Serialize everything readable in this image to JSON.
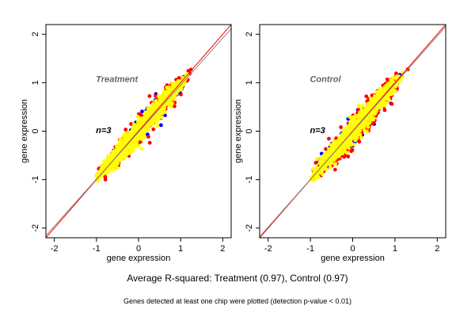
{
  "chart_data": [
    {
      "type": "scatter",
      "panel_label": "Treatment",
      "n_label": "n=3",
      "xlabel": "gene expression",
      "ylabel": "gene expression",
      "xlim": [
        -2.2,
        2.2
      ],
      "ylim": [
        -2.2,
        2.2
      ],
      "xticks": [
        -2,
        -1,
        0,
        1,
        2
      ],
      "yticks": [
        -2,
        -1,
        0,
        1,
        2
      ],
      "reference_lines": [
        {
          "color": "#ff0000",
          "slope": 1,
          "intercept": 0
        },
        {
          "color": "#888888",
          "slope": 0.97,
          "intercept": -0.02
        }
      ],
      "point_clouds": [
        {
          "color": "#0000ff",
          "x_range": [
            -1.05,
            1.25
          ],
          "spread": 0.16,
          "count": 90
        },
        {
          "color": "#ff0000",
          "x_range": [
            -1.05,
            1.3
          ],
          "spread": 0.15,
          "count": 320
        },
        {
          "color": "#ffff00",
          "x_range": [
            -1.05,
            1.2
          ],
          "spread": 0.11,
          "count": 1200
        }
      ]
    },
    {
      "type": "scatter",
      "panel_label": "Control",
      "n_label": "n=3",
      "xlabel": "gene expression",
      "ylabel": "gene expression",
      "xlim": [
        -2.2,
        2.2
      ],
      "ylim": [
        -2.2,
        2.2
      ],
      "xticks": [
        -2,
        -1,
        0,
        1,
        2
      ],
      "yticks": [
        -2,
        -1,
        0,
        1,
        2
      ],
      "reference_lines": [
        {
          "color": "#ff0000",
          "slope": 1,
          "intercept": 0
        },
        {
          "color": "#888888",
          "slope": 0.985,
          "intercept": -0.01
        }
      ],
      "point_clouds": [
        {
          "color": "#0000ff",
          "x_range": [
            -1.0,
            1.25
          ],
          "spread": 0.17,
          "count": 70
        },
        {
          "color": "#ff0000",
          "x_range": [
            -1.0,
            1.3
          ],
          "spread": 0.17,
          "count": 380
        },
        {
          "color": "#ffff00",
          "x_range": [
            -1.0,
            1.2
          ],
          "spread": 0.11,
          "count": 1200
        }
      ]
    }
  ],
  "footer": {
    "summary": "Average R-squared: Treatment (0.97), Control (0.97)",
    "note": "Genes detected at least one chip were plotted (detection p-value < 0.01)"
  }
}
